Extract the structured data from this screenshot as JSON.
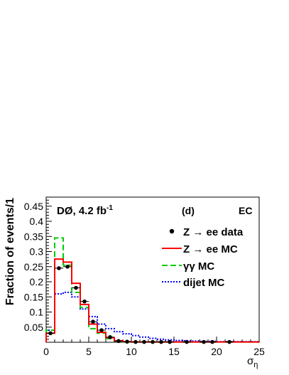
{
  "chart_data": {
    "type": "histogram",
    "experiment": "DØ, 4.2 fb",
    "experiment_sup": "-1",
    "panel": "(d)",
    "region": "EC",
    "xlabel_symbol": "σ",
    "xlabel_sub": "η",
    "ylabel": "Fraction of events/1",
    "xlim": [
      0,
      25
    ],
    "ylim": [
      0,
      0.48
    ],
    "xticks": [
      "0",
      "5",
      "10",
      "15",
      "20",
      "25"
    ],
    "yticks": [
      "0.05",
      "0.1",
      "0.15",
      "0.2",
      "0.25",
      "0.3",
      "0.35",
      "0.4",
      "0.45"
    ],
    "legend_position": "top-right",
    "bin_edges": [
      0,
      1,
      2,
      3,
      4,
      5,
      6,
      7,
      8,
      9,
      10,
      11,
      12,
      13,
      14,
      15,
      16,
      17,
      18,
      19,
      20,
      21,
      22,
      23,
      24,
      25
    ],
    "series": [
      {
        "name": "Z → ee data",
        "style": "markers",
        "color": "#000000",
        "x": [
          0.5,
          1.5,
          2.5,
          3.5,
          4.5,
          5.5,
          6.5,
          7.5,
          8.5,
          9.5,
          10.5,
          11.5,
          12.5,
          13.5,
          14.5,
          16.5,
          18.5,
          19.5,
          21.5
        ],
        "values": [
          0.03,
          0.245,
          0.25,
          0.18,
          0.135,
          0.068,
          0.04,
          0.017,
          0.004,
          0.002,
          0.001,
          0.001,
          0.001,
          0.001,
          0.001,
          0.001,
          0.001,
          0.001,
          0.001
        ]
      },
      {
        "name": "Z → ee MC",
        "style": "step",
        "color": "#ff0000",
        "values": [
          0.03,
          0.275,
          0.265,
          0.195,
          0.125,
          0.06,
          0.033,
          0.015,
          0.005,
          0.002,
          0.001,
          0.001,
          0.001,
          0.001,
          0.001,
          0.001,
          0.001,
          0.001,
          0.001,
          0.001,
          0.001,
          0.001,
          0.001,
          0.001,
          0.001
        ]
      },
      {
        "name": "γγ MC",
        "style": "step-dashed",
        "color": "#00cc00",
        "values": [
          0.04,
          0.345,
          0.255,
          0.165,
          0.115,
          0.045,
          0.03,
          0.012,
          0.004,
          0.001,
          0.001,
          0.001,
          0.001,
          0.001,
          0.001,
          0.001,
          0.001,
          0.001,
          0.001,
          0.001,
          0.001,
          0.001,
          0.001,
          0.001,
          0.001
        ]
      },
      {
        "name": "dijet MC",
        "style": "step-dotted",
        "color": "#0000ff",
        "values": [
          0.04,
          0.16,
          0.165,
          0.15,
          0.11,
          0.085,
          0.06,
          0.045,
          0.035,
          0.028,
          0.022,
          0.017,
          0.013,
          0.01,
          0.008,
          0.006,
          0.005,
          0.004,
          0.003,
          0.003,
          0.002,
          0.002,
          0.002,
          0.002,
          0.002
        ]
      }
    ]
  }
}
